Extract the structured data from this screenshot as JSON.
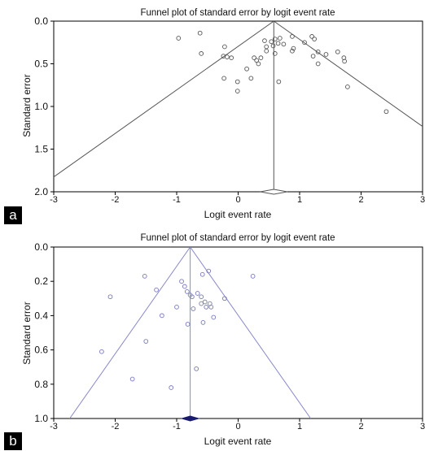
{
  "chart_data": [
    {
      "panel_letter": "a",
      "type": "scatter",
      "title": "Funnel plot of standard error by logit event rate",
      "xlabel": "Logit event rate",
      "ylabel": "Standard error",
      "xlim": [
        -3,
        3
      ],
      "ylim": [
        0,
        2
      ],
      "y_inverted": true,
      "xticks": [
        "-3",
        "-2",
        "-1",
        "0",
        "1",
        "2",
        "3"
      ],
      "yticks": [
        "0.0",
        "0.5",
        "1.0",
        "1.5",
        "2.0"
      ],
      "colors": {
        "point": "#555555",
        "line": "#555555",
        "axis": "#000000",
        "diamond": "#ffffff"
      },
      "pooled_estimate": 0.58,
      "funnel_slope": 1.96,
      "diamond": {
        "center": 0.58,
        "low": 0.36,
        "high": 0.8
      },
      "points": [
        {
          "x": -0.97,
          "y": 0.2
        },
        {
          "x": -0.62,
          "y": 0.14
        },
        {
          "x": -0.6,
          "y": 0.38
        },
        {
          "x": -0.22,
          "y": 0.3
        },
        {
          "x": -0.24,
          "y": 0.41
        },
        {
          "x": -0.18,
          "y": 0.42
        },
        {
          "x": -0.11,
          "y": 0.43
        },
        {
          "x": -0.23,
          "y": 0.67
        },
        {
          "x": -0.01,
          "y": 0.71
        },
        {
          "x": -0.01,
          "y": 0.82
        },
        {
          "x": 0.14,
          "y": 0.56
        },
        {
          "x": 0.21,
          "y": 0.67
        },
        {
          "x": 0.26,
          "y": 0.43
        },
        {
          "x": 0.3,
          "y": 0.46
        },
        {
          "x": 0.33,
          "y": 0.5
        },
        {
          "x": 0.37,
          "y": 0.43
        },
        {
          "x": 0.43,
          "y": 0.23
        },
        {
          "x": 0.46,
          "y": 0.3
        },
        {
          "x": 0.46,
          "y": 0.35
        },
        {
          "x": 0.54,
          "y": 0.24
        },
        {
          "x": 0.57,
          "y": 0.29
        },
        {
          "x": 0.6,
          "y": 0.21
        },
        {
          "x": 0.6,
          "y": 0.38
        },
        {
          "x": 0.65,
          "y": 0.26
        },
        {
          "x": 0.68,
          "y": 0.2
        },
        {
          "x": 0.66,
          "y": 0.71
        },
        {
          "x": 0.74,
          "y": 0.27
        },
        {
          "x": 0.88,
          "y": 0.18
        },
        {
          "x": 0.9,
          "y": 0.32
        },
        {
          "x": 0.88,
          "y": 0.35
        },
        {
          "x": 1.08,
          "y": 0.25
        },
        {
          "x": 1.2,
          "y": 0.18
        },
        {
          "x": 1.24,
          "y": 0.21
        },
        {
          "x": 1.22,
          "y": 0.41
        },
        {
          "x": 1.3,
          "y": 0.36
        },
        {
          "x": 1.3,
          "y": 0.5
        },
        {
          "x": 1.43,
          "y": 0.39
        },
        {
          "x": 1.62,
          "y": 0.36
        },
        {
          "x": 1.72,
          "y": 0.43
        },
        {
          "x": 1.73,
          "y": 0.47
        },
        {
          "x": 1.78,
          "y": 0.77
        },
        {
          "x": 2.41,
          "y": 1.06
        }
      ]
    },
    {
      "panel_letter": "b",
      "type": "scatter",
      "title": "Funnel plot of standard error by logit event rate",
      "xlabel": "Logit event rate",
      "ylabel": "Standard error",
      "xlim": [
        -3,
        3
      ],
      "ylim": [
        0,
        1
      ],
      "y_inverted": true,
      "xticks": [
        "-3",
        "-2",
        "-1",
        "0",
        "1",
        "2",
        "3"
      ],
      "yticks": [
        "0.0",
        "0.2",
        "0.4",
        "0.6",
        "0.8",
        "1.0"
      ],
      "colors": {
        "point": "#7777bb",
        "line": "#8888cc",
        "axis": "#000000",
        "diamond": "#1a1a6e"
      },
      "pooled_estimate": -0.78,
      "funnel_slope": 1.96,
      "diamond": {
        "center": -0.78,
        "low": -0.92,
        "high": -0.64
      },
      "points": [
        {
          "x": -1.52,
          "y": 0.17
        },
        {
          "x": -0.58,
          "y": 0.16
        },
        {
          "x": -0.48,
          "y": 0.14
        },
        {
          "x": 0.24,
          "y": 0.17
        },
        {
          "x": -0.92,
          "y": 0.2
        },
        {
          "x": -2.08,
          "y": 0.29
        },
        {
          "x": -1.33,
          "y": 0.25
        },
        {
          "x": -0.87,
          "y": 0.23
        },
        {
          "x": -0.83,
          "y": 0.26
        },
        {
          "x": -0.78,
          "y": 0.28
        },
        {
          "x": -0.75,
          "y": 0.29
        },
        {
          "x": -0.66,
          "y": 0.27
        },
        {
          "x": -0.6,
          "y": 0.29
        },
        {
          "x": -0.6,
          "y": 0.33
        },
        {
          "x": -0.54,
          "y": 0.32
        },
        {
          "x": -0.52,
          "y": 0.35
        },
        {
          "x": -0.46,
          "y": 0.33
        },
        {
          "x": -0.44,
          "y": 0.35
        },
        {
          "x": -0.22,
          "y": 0.3
        },
        {
          "x": -1.0,
          "y": 0.35
        },
        {
          "x": -0.73,
          "y": 0.36
        },
        {
          "x": -1.24,
          "y": 0.4
        },
        {
          "x": -0.4,
          "y": 0.41
        },
        {
          "x": -0.57,
          "y": 0.44
        },
        {
          "x": -0.82,
          "y": 0.45
        },
        {
          "x": -1.5,
          "y": 0.55
        },
        {
          "x": -2.22,
          "y": 0.61
        },
        {
          "x": -0.68,
          "y": 0.71
        },
        {
          "x": -1.72,
          "y": 0.77
        },
        {
          "x": -1.09,
          "y": 0.82
        }
      ]
    }
  ]
}
